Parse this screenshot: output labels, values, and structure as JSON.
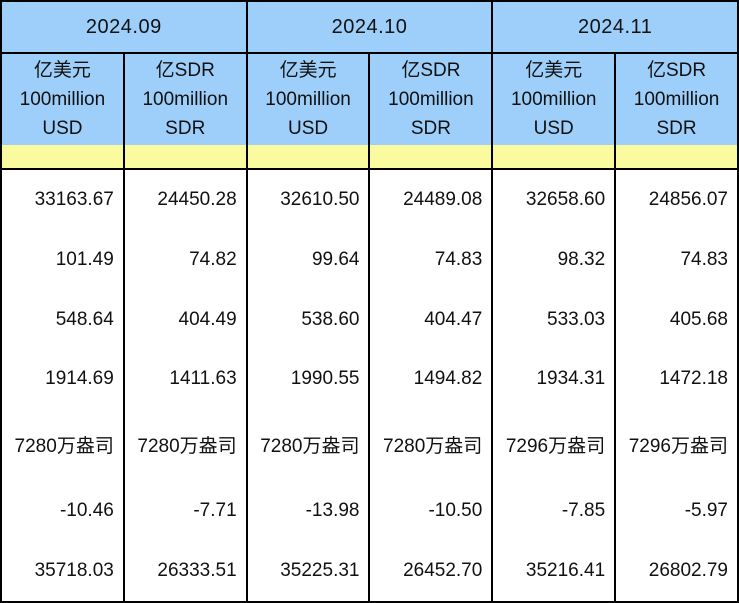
{
  "table": {
    "title_semantic": "monthly reserves data table",
    "months": [
      "2024.09",
      "2024.10",
      "2024.11"
    ],
    "unit_usd": {
      "line1": "亿美元",
      "line2": "100million",
      "line3": "USD"
    },
    "unit_sdr": {
      "line1": "亿SDR",
      "line2": "100million",
      "line3": "SDR"
    },
    "rows": [
      [
        "33163.67",
        "24450.28",
        "32610.50",
        "24489.08",
        "32658.60",
        "24856.07"
      ],
      [
        "101.49",
        "74.82",
        "99.64",
        "74.83",
        "98.32",
        "74.83"
      ],
      [
        "548.64",
        "404.49",
        "538.60",
        "404.47",
        "533.03",
        "405.68"
      ],
      [
        "1914.69",
        "1411.63",
        "1990.55",
        "1494.82",
        "1934.31",
        "1472.18"
      ],
      [
        "7280万盎司",
        "7280万盎司",
        "7280万盎司",
        "7280万盎司",
        "7296万盎司",
        "7296万盎司"
      ],
      [
        "-10.46",
        "-7.71",
        "-13.98",
        "-10.50",
        "-7.85",
        "-5.97"
      ],
      [
        "35718.03",
        "26333.51",
        "35225.31",
        "26452.70",
        "35216.41",
        "26802.79"
      ]
    ]
  },
  "colors": {
    "header_blue": "#9ECFFA",
    "band_yellow": "#FAFA9E",
    "border": "#000000",
    "text": "#111111"
  }
}
